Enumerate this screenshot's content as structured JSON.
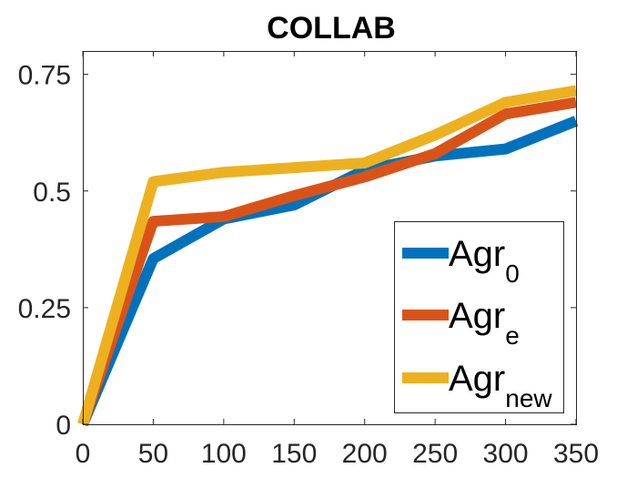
{
  "chart_data": {
    "type": "line",
    "title": "COLLAB",
    "xlabel": "",
    "ylabel": "",
    "x": [
      0,
      50,
      100,
      150,
      200,
      250,
      300,
      350
    ],
    "xlim": [
      0,
      350
    ],
    "ylim": [
      0,
      0.8
    ],
    "x_ticks": [
      0,
      50,
      100,
      150,
      200,
      250,
      300,
      350
    ],
    "x_tick_labels": [
      "0",
      "50",
      "100",
      "150",
      "200",
      "250",
      "300",
      "350"
    ],
    "y_ticks": [
      0,
      0.25,
      0.5,
      0.75
    ],
    "y_tick_labels": [
      "0",
      "0.25",
      "0.5",
      "0.75"
    ],
    "grid": false,
    "legend_position": "lower-right",
    "series": [
      {
        "name": "Agr_0",
        "base": "Agr",
        "subscript": "0",
        "color": "#0072BD",
        "values": [
          0,
          0.355,
          0.44,
          0.47,
          0.545,
          0.575,
          0.59,
          0.65
        ]
      },
      {
        "name": "Agr_e",
        "base": "Agr",
        "subscript": "e",
        "color": "#D95319",
        "values": [
          0,
          0.435,
          0.445,
          0.49,
          0.53,
          0.58,
          0.665,
          0.69
        ]
      },
      {
        "name": "Agr_new",
        "base": "Agr",
        "subscript": "new",
        "color": "#EDB120",
        "values": [
          0,
          0.52,
          0.54,
          0.55,
          0.56,
          0.62,
          0.69,
          0.715
        ]
      }
    ]
  }
}
